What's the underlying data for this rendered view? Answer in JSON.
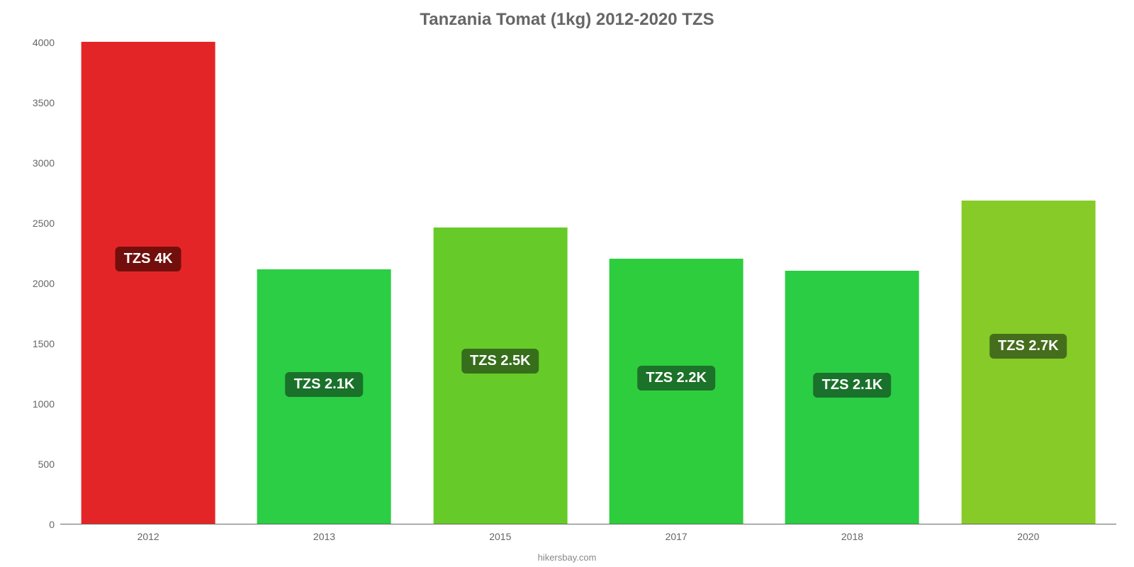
{
  "chart": {
    "type": "bar",
    "title": "Tanzania Tomat (1kg) 2012-2020 TZS",
    "title_color": "#666666",
    "title_fontsize": 24,
    "background_color": "#ffffff",
    "axis_color": "#666666",
    "grid_color": "#e6e6e6",
    "tick_label_color": "#666666",
    "ylim": [
      0,
      4000
    ],
    "ytick_step": 500,
    "yticks": [
      0,
      500,
      1000,
      1500,
      2000,
      2500,
      3000,
      3500,
      4000
    ],
    "bar_width": 0.76,
    "categories": [
      "2012",
      "2013",
      "2015",
      "2017",
      "2018",
      "2020"
    ],
    "series": [
      {
        "value": 4000,
        "label": "TZS 4K",
        "color": "#e42527",
        "label_bg": "#720f0c"
      },
      {
        "value": 2110,
        "label": "TZS 2.1K",
        "color": "#2bce44",
        "label_bg": "#19712a"
      },
      {
        "value": 2460,
        "label": "TZS 2.5K",
        "color": "#66cb28",
        "label_bg": "#366e1c"
      },
      {
        "value": 2200,
        "label": "TZS 2.2K",
        "color": "#2ecd3e",
        "label_bg": "#1c7228"
      },
      {
        "value": 2100,
        "label": "TZS 2.1K",
        "color": "#2bcd45",
        "label_bg": "#1a712b"
      },
      {
        "value": 2680,
        "label": "TZS 2.7K",
        "color": "#86cb27",
        "label_bg": "#456e1c"
      }
    ],
    "bar_label_fontsize": 20,
    "footer": "hikersbay.com",
    "footer_color": "#888888"
  }
}
